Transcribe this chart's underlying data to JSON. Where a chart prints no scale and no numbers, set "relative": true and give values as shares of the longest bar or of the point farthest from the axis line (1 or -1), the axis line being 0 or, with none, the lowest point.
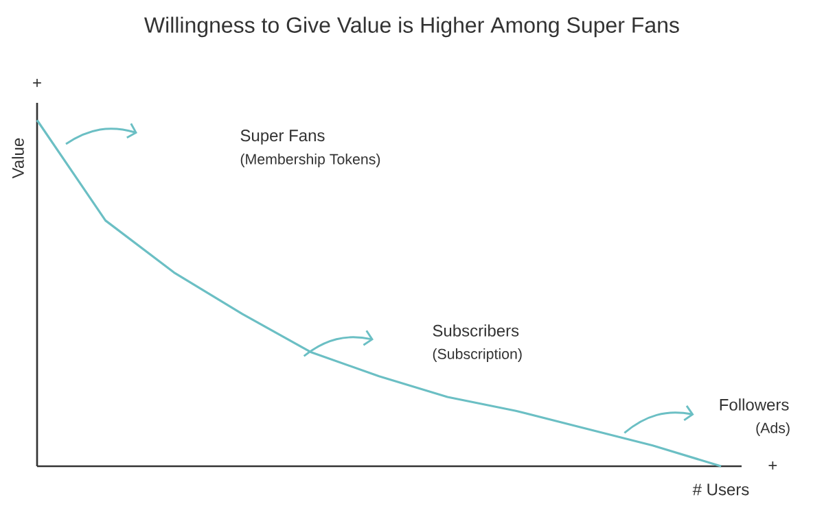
{
  "chart_data": {
    "type": "line",
    "title": "Willingness to Give Value is Higher Among Super Fans",
    "xlabel": "# Users",
    "ylabel": "Value",
    "categories": [
      null,
      null,
      null,
      null,
      null,
      null,
      null,
      null,
      null,
      null,
      null
    ],
    "values": [
      1.0,
      0.71,
      0.56,
      0.44,
      0.33,
      0.26,
      0.2,
      0.16,
      0.11,
      0.06,
      0.0
    ],
    "color": "#6bbfc4",
    "relative": true,
    "annotations": [
      "Super Fans",
      "(Membership Tokens)",
      "Subscribers",
      "(Subscription)",
      "Followers",
      "(Ads)",
      "+",
      "+"
    ]
  }
}
